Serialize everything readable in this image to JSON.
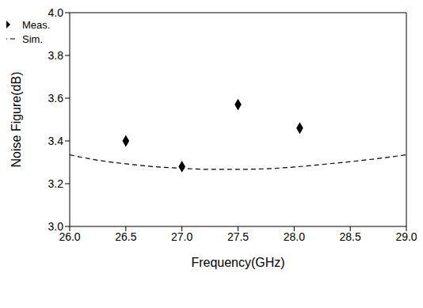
{
  "chart_data": {
    "type": "scatter",
    "x_label": "Frequency(GHz)",
    "y_label": "Noise Figure(dB)",
    "xlim": [
      26,
      29
    ],
    "xticks": [
      {
        "value": 26,
        "label": "26.0"
      },
      26.5,
      {
        "value": 27,
        "label": "27.0"
      },
      27.5,
      {
        "value": 28,
        "label": "28.0"
      },
      28.5,
      {
        "value": 29,
        "label": "29.0"
      }
    ],
    "ylim": [
      3,
      4
    ],
    "yticks": [
      {
        "value": 3,
        "label": "3.0"
      },
      3.2,
      3.4,
      3.6,
      3.8,
      {
        "value": 4,
        "label": "4.0"
      }
    ],
    "legend": "upper right",
    "grid": false,
    "series": [
      {
        "name": "Meas.",
        "type": "scatter",
        "marker": "diamond",
        "color": "#000000",
        "x": [
          26.5,
          27.0,
          27.5,
          28.05
        ],
        "values": [
          3.4,
          3.28,
          3.57,
          3.46
        ]
      },
      {
        "name": "Sim.",
        "type": "line",
        "line_style": "dashed",
        "color": "#000000",
        "x": [
          26.0,
          26.25,
          26.5,
          26.75,
          27.0,
          27.25,
          27.5,
          27.75,
          28.0,
          28.25,
          28.5,
          28.75,
          29.0
        ],
        "values": [
          3.335,
          3.31,
          3.293,
          3.28,
          3.272,
          3.267,
          3.267,
          3.27,
          3.278,
          3.29,
          3.303,
          3.318,
          3.335
        ]
      }
    ]
  }
}
